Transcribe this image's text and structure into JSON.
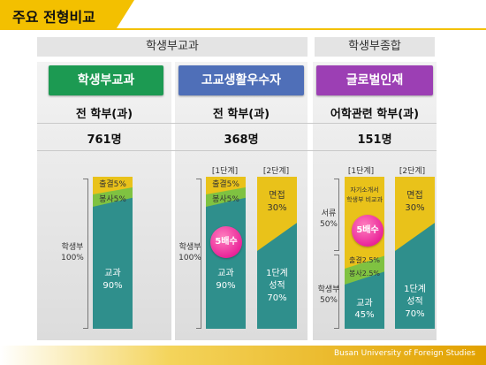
{
  "page_title": "주요 전형비교",
  "groups": {
    "left": "학생부교과",
    "right": "학생부종합"
  },
  "columns": [
    {
      "badge": "학생부교과",
      "badge_color": "#1c9a52",
      "target": "전 학부(과)",
      "count": "761명"
    },
    {
      "badge": "고교생활우수자",
      "badge_color": "#4f6fb8",
      "target": "전 학부(과)",
      "count": "368명"
    },
    {
      "badge": "글로벌인재",
      "badge_color": "#9c3fb4",
      "target": "어학관련 학부(과)",
      "count": "151명"
    }
  ],
  "col1": {
    "side_label_1": "학생부",
    "side_label_2": "100%",
    "seg_attendance": "출결5%",
    "seg_volunteer": "봉사5%",
    "seg_grades_1": "교과",
    "seg_grades_2": "90%"
  },
  "col2": {
    "stage1": "[1단계]",
    "stage2": "[2단계]",
    "side_label_1": "학생부",
    "side_label_2": "100%",
    "seg_attendance": "출결5%",
    "seg_volunteer": "봉사5%",
    "seg_grades_1": "교과",
    "seg_grades_2": "90%",
    "multiplier": "5배수",
    "s2_interview_1": "면접",
    "s2_interview_2": "30%",
    "s2_stage1_1": "1단계",
    "s2_stage1_2": "성적",
    "s2_stage1_3": "70%"
  },
  "col3": {
    "stage1": "[1단계]",
    "stage2": "[2단계]",
    "docs_label_1": "서류",
    "docs_label_2": "50%",
    "record_label_1": "학생부",
    "record_label_2": "50%",
    "seg_intro_1": "자기소개서",
    "seg_intro_2": "학생부 비교과",
    "seg_attendance": "출결2.5%",
    "seg_volunteer": "봉사2.5%",
    "seg_grades_1": "교과",
    "seg_grades_2": "45%",
    "multiplier": "5배수",
    "s2_interview_1": "면접",
    "s2_interview_2": "30%",
    "s2_stage1_1": "1단계",
    "s2_stage1_2": "성적",
    "s2_stage1_3": "70%"
  },
  "footer": "Busan University of Foreign Studies",
  "colors": {
    "accent": "#f3c000",
    "teal": "#2f8f8c",
    "yellow": "#e9c21a",
    "green": "#7fc241",
    "pink": "#e1008a"
  }
}
